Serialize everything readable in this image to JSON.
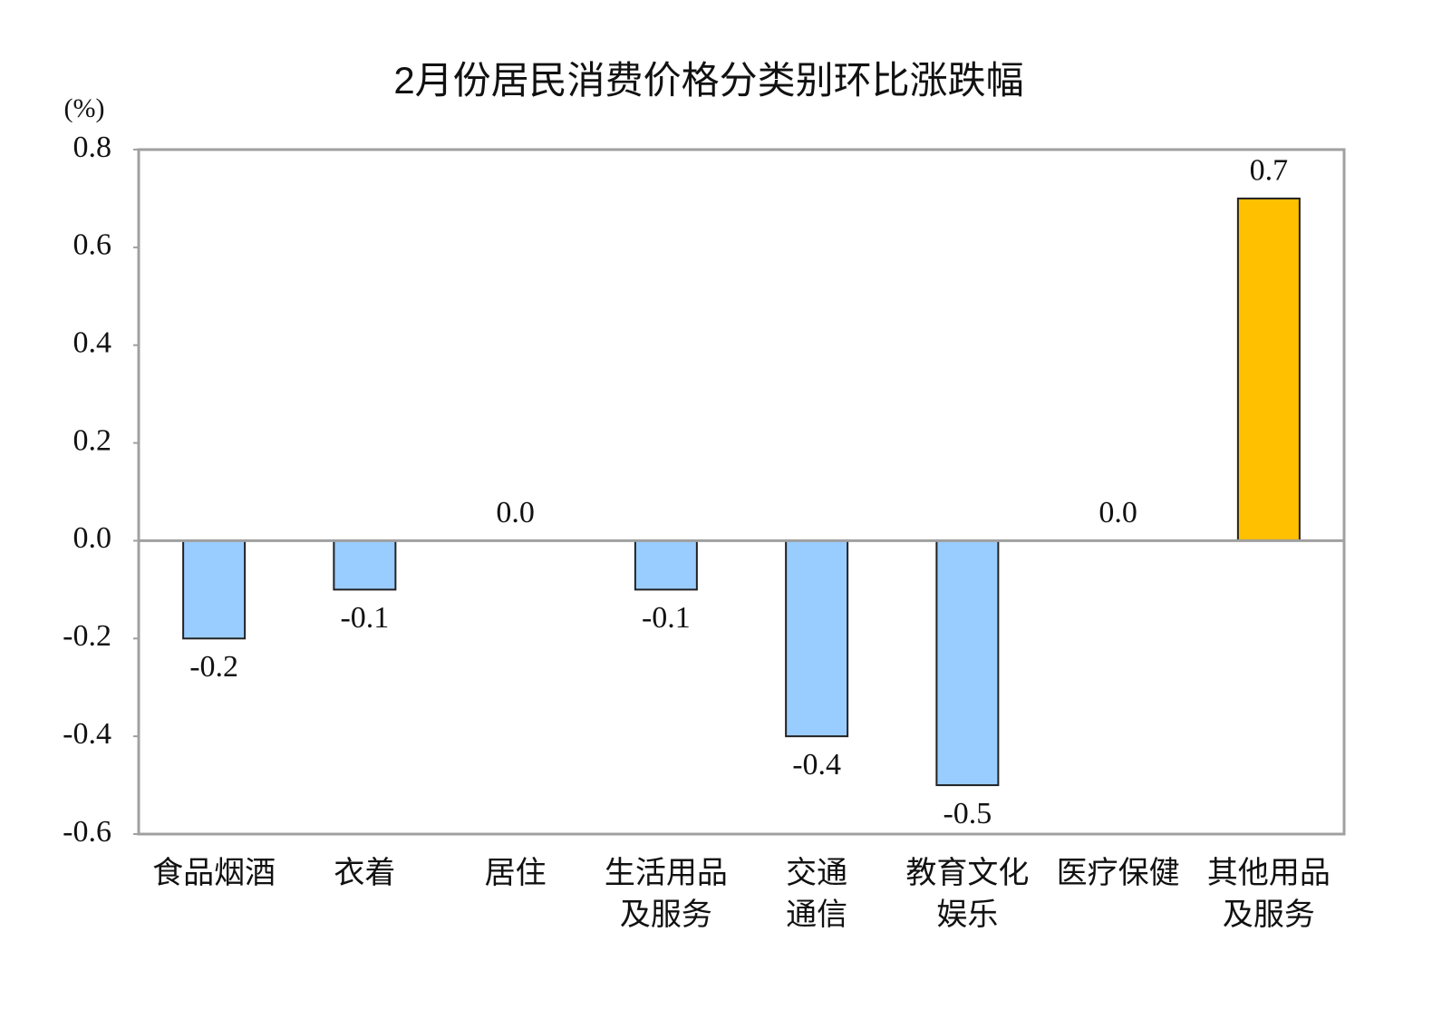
{
  "chart_data": {
    "type": "bar",
    "title": "2月份居民消费价格分类别环比涨跌幅",
    "y_label": "(%)",
    "categories": [
      "食品烟酒",
      "衣着",
      "居住",
      "生活用品\n及服务",
      "交通\n通信",
      "教育文化\n娱乐",
      "医疗保健",
      "其他用品\n及服务"
    ],
    "values": [
      -0.2,
      -0.1,
      0.0,
      -0.1,
      -0.4,
      -0.5,
      0.0,
      0.7
    ],
    "value_labels": [
      "-0.2",
      "-0.1",
      "0.0",
      "-0.1",
      "-0.4",
      "-0.5",
      "0.0",
      "0.7"
    ],
    "colors": [
      "#99ccff",
      "#99ccff",
      "#99ccff",
      "#99ccff",
      "#99ccff",
      "#99ccff",
      "#99ccff",
      "#ffc000"
    ],
    "ylim": [
      -0.6,
      0.8
    ],
    "yticks": [
      {
        "value": -0.6,
        "label": "-0.6"
      },
      {
        "value": -0.4,
        "label": "-0.4"
      },
      {
        "value": -0.2,
        "label": "-0.2"
      },
      {
        "value": 0,
        "label": "0.0"
      },
      {
        "value": 0.2,
        "label": "0.2"
      },
      {
        "value": 0.4,
        "label": "0.4"
      },
      {
        "value": 0.6,
        "label": "0.6"
      },
      {
        "value": 0.8,
        "label": "0.8"
      }
    ],
    "grid": false
  }
}
